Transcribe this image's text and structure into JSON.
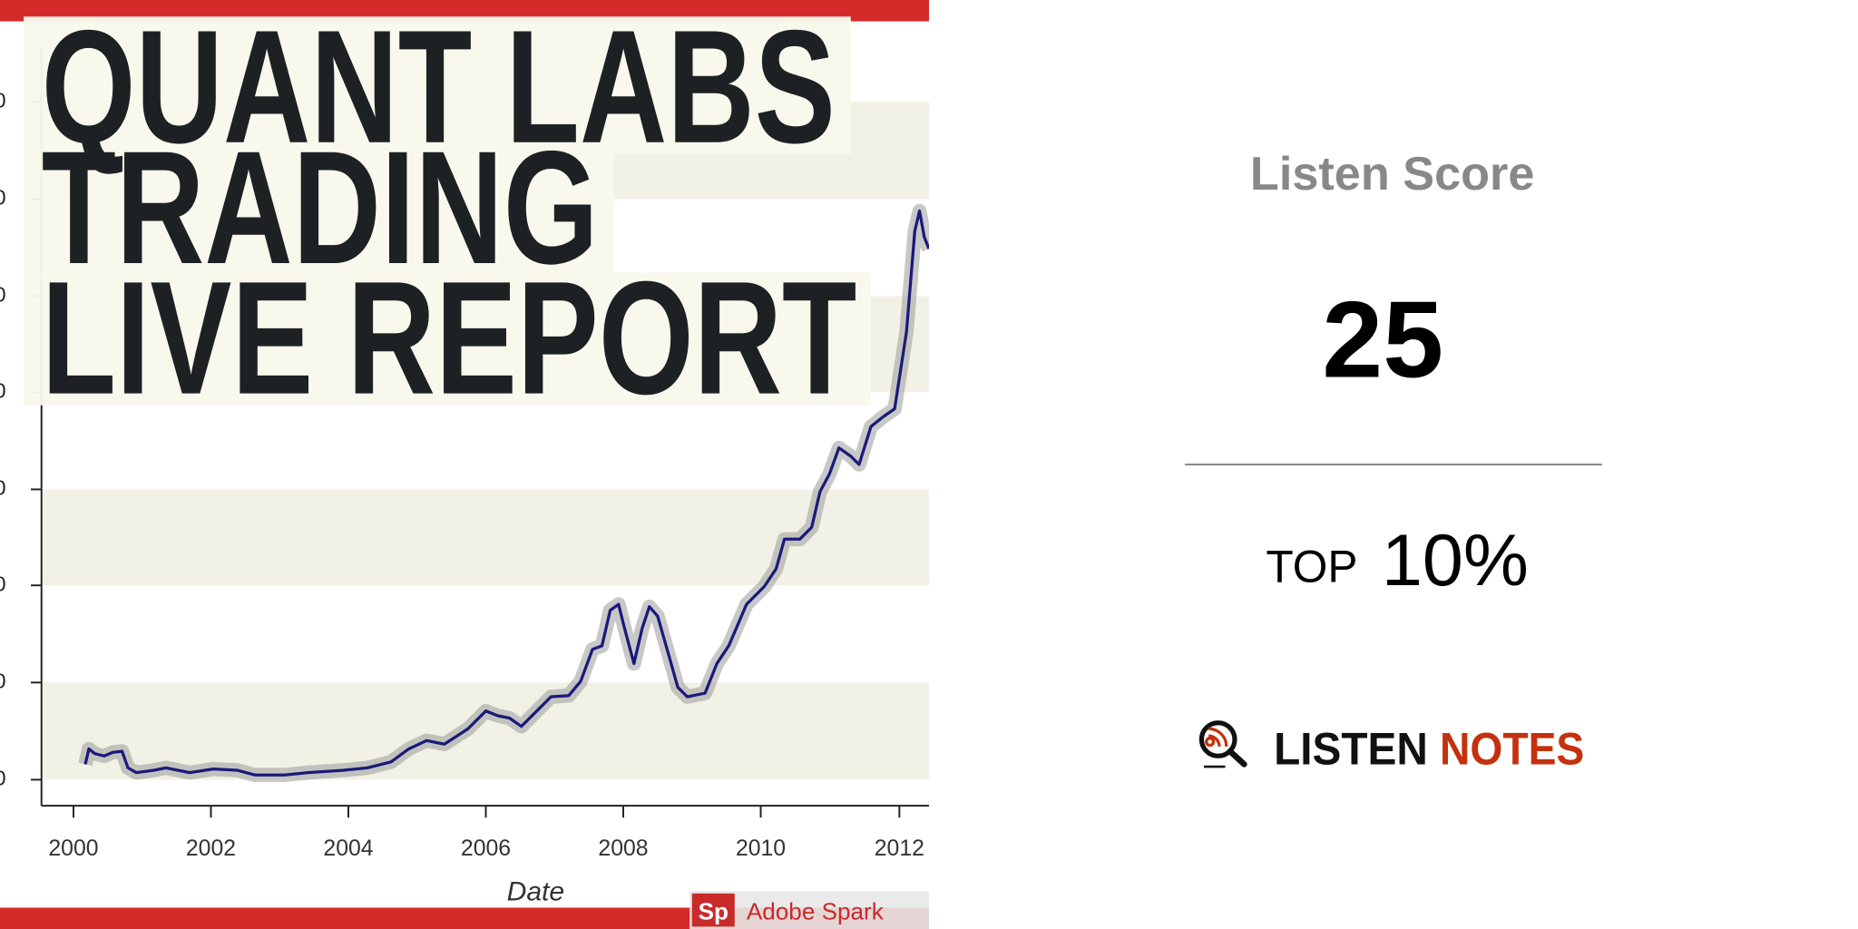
{
  "cover": {
    "title_lines": [
      "QUANT LABS",
      "TRADING",
      "LIVE REPORT"
    ],
    "y_labels": [
      "0",
      "0",
      "0",
      "0",
      "0",
      "0",
      "0",
      "0"
    ],
    "x_labels": [
      "2000",
      "2002",
      "2004",
      "2006",
      "2008",
      "2010",
      "2012"
    ],
    "x_axis_title": "Date",
    "badge_logo": "Sp",
    "badge_text": "Adobe Spark"
  },
  "score_panel": {
    "heading": "Listen Score",
    "score": "25",
    "rank_prefix": "TOP",
    "rank": "10%",
    "brand_left": "LISTEN",
    "brand_right": "NOTES"
  }
}
